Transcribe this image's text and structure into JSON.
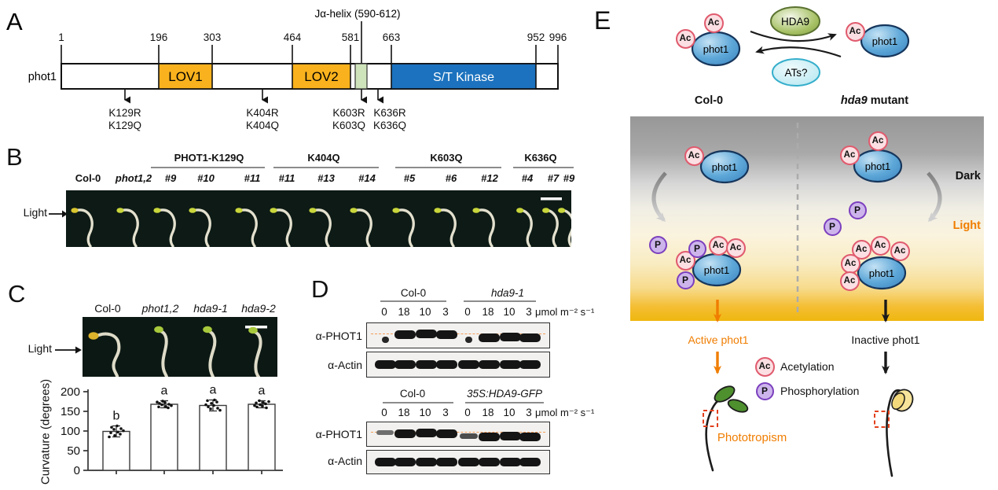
{
  "panelA": {
    "label": "A",
    "ja_helix": "Jα-helix (590-612)",
    "protein": "phot1",
    "ticks": [
      "1",
      "196",
      "303",
      "464",
      "581",
      "663",
      "952",
      "996"
    ],
    "domains": {
      "lov1": "LOV1",
      "lov2": "LOV2",
      "kinase": "S/T Kinase"
    },
    "domain_colors": {
      "lov": "#F9B21D",
      "ja": "#CFE3BA",
      "kinase": "#1C72BE"
    },
    "mutations": [
      [
        "K129R",
        "K129Q"
      ],
      [
        "K404R",
        "K404Q"
      ],
      [
        "K603R",
        "K603Q"
      ],
      [
        "K636R",
        "K636Q"
      ]
    ]
  },
  "panelB": {
    "label": "B",
    "light": "Light",
    "groups": [
      "PHOT1-K129Q",
      "K404Q",
      "K603Q",
      "K636Q"
    ],
    "lanes": [
      "Col-0",
      "phot1,2",
      "#9",
      "#10",
      "#11",
      "#11",
      "#13",
      "#14",
      "#5",
      "#6",
      "#12",
      "#4",
      "#7",
      "#9"
    ]
  },
  "panelC": {
    "label": "C",
    "light": "Light",
    "genotypes": [
      "Col-0",
      "phot1,2",
      "hda9-1",
      "hda9-2"
    ]
  },
  "chart_data": {
    "type": "bar",
    "categories": [
      "Col-0",
      "phot1,2",
      "hda9-1",
      "hda9-2"
    ],
    "values": [
      99,
      168,
      165,
      168
    ],
    "errors": [
      14,
      9,
      14,
      9
    ],
    "sig_letters": [
      "b",
      "a",
      "a",
      "a"
    ],
    "title": "",
    "xlabel": "",
    "ylabel": "Curvature (degrees)",
    "ylim": [
      0,
      200
    ],
    "yticks": [
      0,
      50,
      100,
      150,
      200
    ],
    "points_per_bar": 10,
    "bar_fill": "#ffffff",
    "bar_stroke": "#3b3b3b"
  },
  "panelD": {
    "label": "D",
    "sets": [
      {
        "genotypes": [
          "Col-0",
          "hda9-1"
        ],
        "lanes": [
          "0",
          "18",
          "10",
          "3",
          "0",
          "18",
          "10",
          "3"
        ],
        "unit": "μmol m⁻² s⁻¹",
        "rows": [
          {
            "antibody": "α-PHOT1",
            "bands": [
              0.1,
              1,
              1,
              1,
              0.1,
              1,
              1,
              1
            ]
          },
          {
            "antibody": "α-Actin",
            "bands": [
              1,
              1,
              1,
              1,
              1,
              1,
              1,
              1
            ]
          }
        ]
      },
      {
        "genotypes": [
          "Col-0",
          "35S:HDA9-GFP"
        ],
        "lanes": [
          "0",
          "18",
          "10",
          "3",
          "0",
          "18",
          "10",
          "3"
        ],
        "unit": "μmol m⁻² s⁻¹",
        "rows": [
          {
            "antibody": "α-PHOT1",
            "bands": [
              0.3,
              1,
              1,
              1,
              0.5,
              1,
              1,
              1
            ]
          },
          {
            "antibody": "α-Actin",
            "bands": [
              1,
              1,
              1,
              1,
              1,
              1,
              1,
              1
            ]
          }
        ]
      }
    ]
  },
  "panelE": {
    "label": "E",
    "protein": "phot1",
    "deacetylase": "HDA9",
    "acetyltransferase": "ATs?",
    "left_genotype": "Col-0",
    "right_genotype_gene": "hda9",
    "right_genotype_suffix": " mutant",
    "dark": "Dark",
    "light": "Light",
    "ac": "Ac",
    "p": "P",
    "active": "Active phot1",
    "inactive": "Inactive phot1",
    "process": "Phototropism",
    "legend": {
      "acetylation": "Acetylation",
      "phosphorylation": "Phosphorylation"
    },
    "colors": {
      "orange": "#F07D00",
      "ac_border": "#E05A6D",
      "p_border": "#7B3FBE",
      "phot1_fill": "#4F9AD0",
      "hda9_fill": "#8FAF4C",
      "ats_fill": "#C3ECF3"
    }
  }
}
